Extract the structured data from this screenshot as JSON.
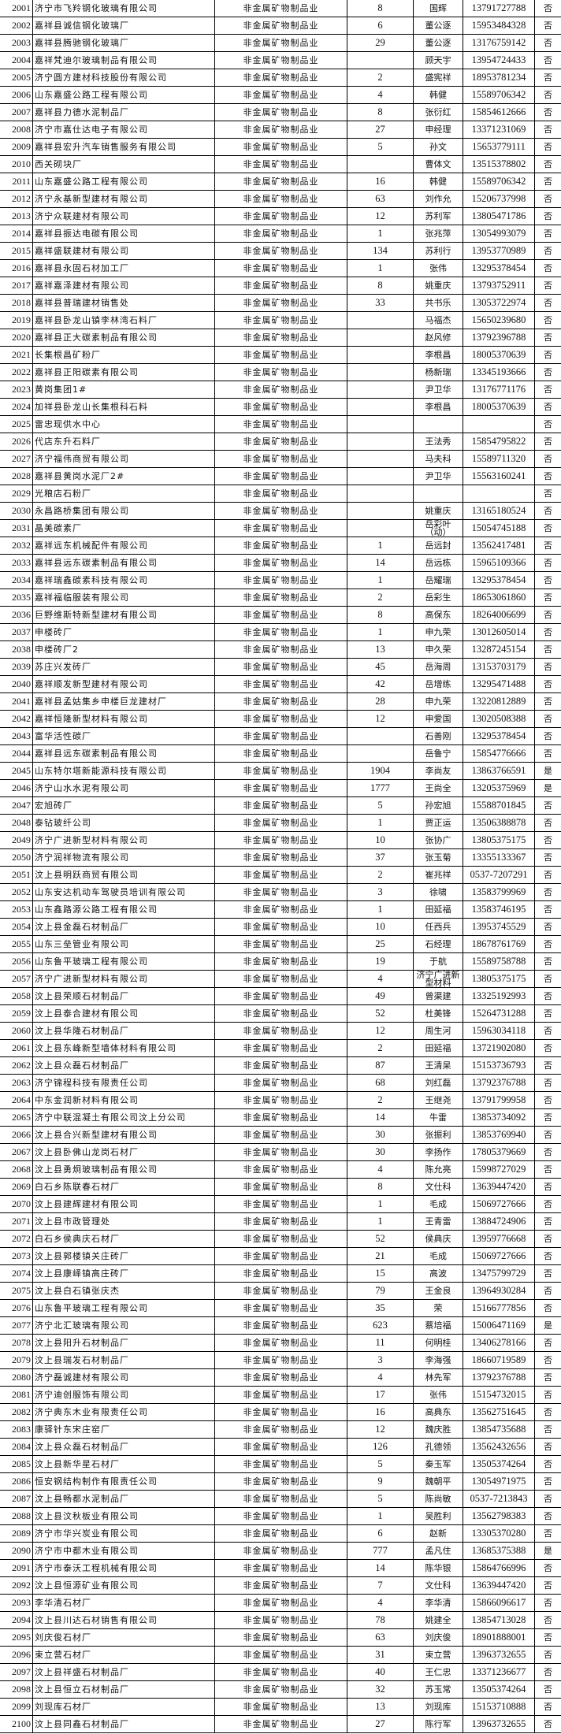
{
  "rows": [
    [
      "2001",
      "济宁市飞羚钢化玻璃有限公司",
      "非金属矿物制品业",
      "8",
      "国辉",
      "13791727788",
      "否"
    ],
    [
      "2002",
      "嘉祥县诚信钢化玻璃厂",
      "非金属矿物制品业",
      "6",
      "董公逐",
      "15953484328",
      "否"
    ],
    [
      "2003",
      "嘉祥县腾驰钢化玻璃厂",
      "非金属矿物制品业",
      "29",
      "董公逐",
      "13176759142",
      "否"
    ],
    [
      "2004",
      "嘉祥梵迪尔玻璃制品有限公司",
      "非金属矿物制品业",
      "",
      "顾天宇",
      "13954724433",
      "否"
    ],
    [
      "2005",
      "济宁圆方建材科技股份有限公司",
      "非金属矿物制品业",
      "2",
      "盛宪祥",
      "18953781234",
      "否"
    ],
    [
      "2006",
      "山东嘉盛公路工程有限公司",
      "非金属矿物制品业",
      "4",
      "韩健",
      "15589706342",
      "否"
    ],
    [
      "2007",
      "嘉祥县力德水泥制品厂",
      "非金属矿物制品业",
      "8",
      "张衍红",
      "15854612666",
      "否"
    ],
    [
      "2008",
      "济宁市嘉仕达电子有限公司",
      "非金属矿物制品业",
      "27",
      "申经理",
      "13371231069",
      "否"
    ],
    [
      "2009",
      "嘉祥县宏升汽车销售服务有限公司",
      "非金属矿物制品业",
      "5",
      "孙文",
      "15653779111",
      "否"
    ],
    [
      "2010",
      "西关砌块厂",
      "非金属矿物制品业",
      "",
      "曹体文",
      "13515378802",
      "否"
    ],
    [
      "2011",
      "山东嘉盛公路工程有限公司",
      "非金属矿物制品业",
      "16",
      "韩健",
      "15589706342",
      "否"
    ],
    [
      "2012",
      "济宁永基新型建材有限公司",
      "非金属矿物制品业",
      "63",
      "刘作允",
      "15206737998",
      "否"
    ],
    [
      "2013",
      "济宁众联建材有限公司",
      "非金属矿物制品业",
      "12",
      "苏利军",
      "13805471786",
      "否"
    ],
    [
      "2014",
      "嘉祥县振达电碳有限公司",
      "非金属矿物制品业",
      "1",
      "张兆萍",
      "13054993079",
      "否"
    ],
    [
      "2015",
      "嘉祥盛联建材有限公司",
      "非金属矿物制品业",
      "134",
      "苏利行",
      "13953770989",
      "否"
    ],
    [
      "2016",
      "嘉祥县永固石材加工厂",
      "非金属矿物制品业",
      "1",
      "张伟",
      "13295378454",
      "否"
    ],
    [
      "2017",
      "嘉祥嘉泽建材有限公司",
      "非金属矿物制品业",
      "8",
      "姚重庆",
      "13793752911",
      "否"
    ],
    [
      "2018",
      "嘉祥县普瑞建材销售处",
      "非金属矿物制品业",
      "33",
      "共书乐",
      "13053722974",
      "否"
    ],
    [
      "2019",
      "嘉祥县卧龙山镇李林湾石料厂",
      "非金属矿物制品业",
      "",
      "马福杰",
      "15650239680",
      "否"
    ],
    [
      "2020",
      "嘉祥县正大碳素制品有限公司",
      "非金属矿物制品业",
      "",
      "赵风修",
      "13792396788",
      "否"
    ],
    [
      "2021",
      "长集根昌矿粉厂",
      "非金属矿物制品业",
      "",
      "李根昌",
      "18005370639",
      "否"
    ],
    [
      "2022",
      "嘉祥县正阳碳素有限公司",
      "非金属矿物制品业",
      "",
      "杨新瑞",
      "13345193666",
      "否"
    ],
    [
      "2023",
      "黄岗集团1#",
      "非金属矿物制品业",
      "",
      "尹卫华",
      "13176771176",
      "否"
    ],
    [
      "2024",
      "加祥县卧龙山长集根科石料",
      "非金属矿物制品业",
      "",
      "李根昌",
      "18005370639",
      "否"
    ],
    [
      "2025",
      "雷忠现供水中心",
      "非金属矿物制品业",
      "",
      "",
      "",
      "否"
    ],
    [
      "2026",
      "代店东升石料厂",
      "非金属矿物制品业",
      "",
      "王法秀",
      "15854795822",
      "否"
    ],
    [
      "2027",
      "济宁福伟商贸有限公司",
      "非金属矿物制品业",
      "",
      "马夫科",
      "15589711320",
      "否"
    ],
    [
      "2028",
      "嘉祥县黄岗水泥厂2#",
      "非金属矿物制品业",
      "",
      "尹卫华",
      "15563160241",
      "否"
    ],
    [
      "2029",
      "光粮店石粉厂",
      "非金属矿物制品业",
      "",
      "",
      "",
      "否"
    ],
    [
      "2030",
      "永昌路桥集团有限公司",
      "非金属矿物制品业",
      "",
      "姚重庆",
      "13165180524",
      "否"
    ],
    [
      "2031",
      "晶美碳素厂",
      "非金属矿物制品业",
      "",
      "岳彩叶（动）",
      "15054745188",
      "否"
    ],
    [
      "2032",
      "嘉祥远东机械配件有限公司",
      "非金属矿物制品业",
      "1",
      "岳远封",
      "13562417481",
      "否"
    ],
    [
      "2033",
      "嘉祥县远东碳素制品有限公司",
      "非金属矿物制品业",
      "14",
      "岳远栋",
      "15965109366",
      "否"
    ],
    [
      "2034",
      "嘉祥瑞鑫碳素科技有限公司",
      "非金属矿物制品业",
      "1",
      "岳耀瑞",
      "13295378454",
      "否"
    ],
    [
      "2035",
      "嘉祥福临服装有限公司",
      "非金属矿物制品业",
      "2",
      "岳彩生",
      "18653061860",
      "否"
    ],
    [
      "2036",
      "巨野维斯特新型建材有限公司",
      "非金属矿物制品业",
      "8",
      "高保东",
      "18264006699",
      "否"
    ],
    [
      "2037",
      "申楼砖厂",
      "非金属矿物制品业",
      "1",
      "申九荣",
      "13012605014",
      "否"
    ],
    [
      "2038",
      "申楼砖厂2",
      "非金属矿物制品业",
      "13",
      "申久荣",
      "13287245154",
      "否"
    ],
    [
      "2039",
      "苏庄兴发砖厂",
      "非金属矿物制品业",
      "45",
      "岳海周",
      "13153703179",
      "否"
    ],
    [
      "2040",
      "嘉祥顺发新型建材有限公司",
      "非金属矿物制品业",
      "42",
      "岳增练",
      "13295471488",
      "否"
    ],
    [
      "2041",
      "嘉祥县孟姑集乡申楼巨龙建材厂",
      "非金属矿物制品业",
      "28",
      "申九荣",
      "13220812889",
      "否"
    ],
    [
      "2042",
      "嘉祥恒隆新型材料有限公司",
      "非金属矿物制品业",
      "12",
      "申爱国",
      "13020508388",
      "否"
    ],
    [
      "2043",
      "富华活性碳厂",
      "非金属矿物制品业",
      "",
      "石善刚",
      "13295378454",
      "否"
    ],
    [
      "2044",
      "嘉祥县远东碳素制品有限公司",
      "非金属矿物制品业",
      "",
      "岳鲁宁",
      "15854776666",
      "否"
    ],
    [
      "2045",
      "山东特尔塔新能源科技有限公司",
      "非金属矿物制品业",
      "1904",
      "李尚友",
      "13863766591",
      "是"
    ],
    [
      "2046",
      "济宁山水水泥有限公司",
      "非金属矿物制品业",
      "1777",
      "王尚全",
      "13205375969",
      "是"
    ],
    [
      "2047",
      "宏旭砖厂",
      "非金属矿物制品业",
      "5",
      "孙宏旭",
      "15588701845",
      "否"
    ],
    [
      "2048",
      "泰钻玻纤公司",
      "非金属矿物制品业",
      "1",
      "贾正运",
      "13506388878",
      "否"
    ],
    [
      "2049",
      "济宁广进新型材料有限公司",
      "非金属矿物制品业",
      "10",
      "张协广",
      "13805375175",
      "否"
    ],
    [
      "2050",
      "济宁润祥物流有限公司",
      "非金属矿物制品业",
      "37",
      "张玉菊",
      "13355133367",
      "否"
    ],
    [
      "2051",
      "汶上县明跃商贸有限公司",
      "非金属矿物制品业",
      "2",
      "崔兆祥",
      "0537-7207291",
      "否"
    ],
    [
      "2052",
      "山东安达机动车驾驶员培训有限公司",
      "非金属矿物制品业",
      "3",
      "徐啸",
      "13583799969",
      "否"
    ],
    [
      "2053",
      "山东鑫路源公路工程有限公司",
      "非金属矿物制品业",
      "1",
      "田延福",
      "13583746195",
      "否"
    ],
    [
      "2054",
      "汶上县金磊石材制品厂",
      "非金属矿物制品业",
      "10",
      "任西兵",
      "13953745529",
      "否"
    ],
    [
      "2055",
      "山东三垒管业有限公司",
      "非金属矿物制品业",
      "25",
      "石经理",
      "18678761769",
      "否"
    ],
    [
      "2056",
      "山东鲁平玻璃工程有限公司",
      "非金属矿物制品业",
      "19",
      "于航",
      "15589758788",
      "否"
    ],
    [
      "2057",
      "济宁广进新型材料有限公司",
      "非金属矿物制品业",
      "4",
      "济宁广进新型材料",
      "13805375175",
      "否"
    ],
    [
      "2058",
      "汶上县荣顺石材制品厂",
      "非金属矿物制品业",
      "49",
      "曾渠建",
      "13325192993",
      "否"
    ],
    [
      "2059",
      "汶上县泰合建材有限公司",
      "非金属矿物制品业",
      "52",
      "杜美锋",
      "15264731288",
      "否"
    ],
    [
      "2060",
      "汶上县华隆石材制品厂",
      "非金属矿物制品业",
      "12",
      "周生河",
      "15963034118",
      "否"
    ],
    [
      "2061",
      "汶上县东峰新型墙体材料有限公司",
      "非金属矿物制品业",
      "2",
      "田延福",
      "13721902080",
      "否"
    ],
    [
      "2062",
      "汶上县众磊石材制品厂",
      "非金属矿物制品业",
      "87",
      "王清杲",
      "15153736793",
      "否"
    ],
    [
      "2063",
      "济宁锦程科技有限责任公司",
      "非金属矿物制品业",
      "68",
      "刘红磊",
      "13792376788",
      "否"
    ],
    [
      "2064",
      "中东金润新材料有限公司",
      "非金属矿物制品业",
      "2",
      "王继尧",
      "13791799958",
      "否"
    ],
    [
      "2065",
      "济宁中联混凝土有限公司汶上分公司",
      "非金属矿物制品业",
      "14",
      "牛雷",
      "13853734092",
      "否"
    ],
    [
      "2066",
      "汶上县合兴新型建材有限公司",
      "非金属矿物制品业",
      "30",
      "张振利",
      "13853769940",
      "否"
    ],
    [
      "2067",
      "汶上县卧佛山龙岗石材厂",
      "非金属矿物制品业",
      "30",
      "李扬作",
      "17805379669",
      "否"
    ],
    [
      "2068",
      "汶上县勇炯玻璃制品有限公司",
      "非金属矿物制品业",
      "4",
      "陈允亮",
      "15998727029",
      "否"
    ],
    [
      "2069",
      "白石乡陈联春石材厂",
      "非金属矿物制品业",
      "8",
      "文仕科",
      "13639447420",
      "否"
    ],
    [
      "2070",
      "汶上县建辉建材有限公司",
      "非金属矿物制品业",
      "1",
      "毛成",
      "15069727666",
      "否"
    ],
    [
      "2071",
      "汶上县市政管理处",
      "非金属矿物制品业",
      "1",
      "王青雷",
      "13884724906",
      "否"
    ],
    [
      "2072",
      "白石乡侯典庆石材厂",
      "非金属矿物制品业",
      "52",
      "侯典庆",
      "13959776668",
      "否"
    ],
    [
      "2073",
      "汶上县郭楼镇关庄砖厂",
      "非金属矿物制品业",
      "21",
      "毛成",
      "15069727666",
      "否"
    ],
    [
      "2074",
      "汶上县康峄镇高庄砖厂",
      "非金属矿物制品业",
      "15",
      "高波",
      "13475799729",
      "否"
    ],
    [
      "2075",
      "汶上县白石镇张庆杰",
      "非金属矿物制品业",
      "79",
      "王金良",
      "13964930284",
      "否"
    ],
    [
      "2076",
      "山东鲁平玻璃工程有限公司",
      "非金属矿物制品业",
      "35",
      "荣",
      "15166777856",
      "否"
    ],
    [
      "2077",
      "济宁北汇玻璃有限公司",
      "非金属矿物制品业",
      "623",
      "蔡培福",
      "15006471169",
      "是"
    ],
    [
      "2078",
      "汶上县阳升石材制品厂",
      "非金属矿物制品业",
      "11",
      "何明桂",
      "13406278166",
      "否"
    ],
    [
      "2079",
      "汶上县瑞发石材制品厂",
      "非金属矿物制品业",
      "3",
      "李海强",
      "18660719589",
      "否"
    ],
    [
      "2080",
      "济宁磊诚建材有限公司",
      "非金属矿物制品业",
      "4",
      "林先军",
      "13792376788",
      "否"
    ],
    [
      "2081",
      "济宁迪创服饰有限公司",
      "非金属矿物制品业",
      "17",
      "张伟",
      "15154732015",
      "否"
    ],
    [
      "2082",
      "济宁典东木业有限责任公司",
      "非金属矿物制品业",
      "16",
      "高典东",
      "13562751645",
      "否"
    ],
    [
      "2083",
      "康驿针东宋庄窑厂",
      "非金属矿物制品业",
      "12",
      "魏庆胜",
      "13854735688",
      "否"
    ],
    [
      "2084",
      "汶上县众磊石材制品厂",
      "非金属矿物制品业",
      "126",
      "孔德领",
      "13562432656",
      "否"
    ],
    [
      "2085",
      "汶上县新华星石材厂",
      "非金属矿物制品业",
      "5",
      "秦玉军",
      "13505374264",
      "否"
    ],
    [
      "2086",
      "恒安钢结构制作有限责任公司",
      "非金属矿物制品业",
      "9",
      "魏朝平",
      "13054971975",
      "否"
    ],
    [
      "2087",
      "汶上县畅都水泥制品厂",
      "非金属矿物制品业",
      "5",
      "陈尚敏",
      "0537-7213843",
      "否"
    ],
    [
      "2088",
      "汶上县汶秋板业有限公司",
      "非金属矿物制品业",
      "1",
      "吴胜利",
      "13562798383",
      "否"
    ],
    [
      "2089",
      "济宁市华兴炭业有限公司",
      "非金属矿物制品业",
      "6",
      "赵新",
      "13305370280",
      "否"
    ],
    [
      "2090",
      "济宁市中都木业有限公司",
      "非金属矿物制品业",
      "777",
      "孟凡住",
      "13685375388",
      "是"
    ],
    [
      "2091",
      "济宁市泰沃工程机械有限公司",
      "非金属矿物制品业",
      "14",
      "陈华银",
      "15864766996",
      "否"
    ],
    [
      "2092",
      "汶上县恒源矿业有限公司",
      "非金属矿物制品业",
      "7",
      "文仕科",
      "13639447420",
      "否"
    ],
    [
      "2093",
      "李华清石材厂",
      "非金属矿物制品业",
      "4",
      "李华清",
      "15866096617",
      "否"
    ],
    [
      "2094",
      "汶上县川达石材销售有限公司",
      "非金属矿物制品业",
      "78",
      "姚建全",
      "13854713028",
      "否"
    ],
    [
      "2095",
      "刘庆俊石材厂",
      "非金属矿物制品业",
      "63",
      "刘庆俊",
      "18901888001",
      "否"
    ],
    [
      "2096",
      "束立营石材厂",
      "非金属矿物制品业",
      "31",
      "束立营",
      "13963732655",
      "否"
    ],
    [
      "2097",
      "汶上县祥盛石材制品厂",
      "非金属矿物制品业",
      "40",
      "王仁忠",
      "13371236677",
      "否"
    ],
    [
      "2098",
      "汶上县恒立石材制品厂",
      "非金属矿物制品业",
      "32",
      "苏玉常",
      "13505374264",
      "否"
    ],
    [
      "2099",
      "刘现库石材厂",
      "非金属矿物制品业",
      "13",
      "刘现库",
      "15153710888",
      "否"
    ],
    [
      "2100",
      "汶上县同鑫石材制品厂",
      "非金属矿物制品业",
      "27",
      "陈行军",
      "13963732655",
      "否"
    ]
  ]
}
